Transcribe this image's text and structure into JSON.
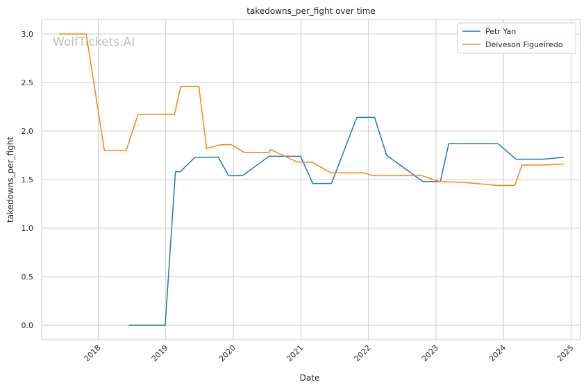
{
  "chart_data": {
    "type": "line",
    "title": "takedowns_per_fight over time",
    "xlabel": "Date",
    "ylabel": "takedowns_per_fight",
    "watermark": "WolfTickets.AI",
    "xlim": [
      "2017-03-01",
      "2025-02-20"
    ],
    "ylim": [
      -0.15,
      3.15
    ],
    "x_ticks": [
      "2018",
      "2019",
      "2020",
      "2021",
      "2022",
      "2023",
      "2024",
      "2025"
    ],
    "y_ticks": [
      "0.0",
      "0.5",
      "1.0",
      "1.5",
      "2.0",
      "2.5",
      "3.0"
    ],
    "grid": true,
    "legend_position": "top-right",
    "series": [
      {
        "name": "Petr Yan",
        "color": "#1f77b4",
        "points": [
          [
            "2018-06-15",
            0.0
          ],
          [
            "2018-12-29",
            0.0
          ],
          [
            "2019-02-22",
            1.58
          ],
          [
            "2019-03-20",
            1.58
          ],
          [
            "2019-06-08",
            1.73
          ],
          [
            "2019-10-12",
            1.73
          ],
          [
            "2019-12-07",
            1.54
          ],
          [
            "2020-02-20",
            1.54
          ],
          [
            "2020-07-12",
            1.74
          ],
          [
            "2020-12-30",
            1.74
          ],
          [
            "2021-03-06",
            1.46
          ],
          [
            "2021-06-15",
            1.46
          ],
          [
            "2021-10-30",
            2.14
          ],
          [
            "2022-02-03",
            2.14
          ],
          [
            "2022-04-09",
            1.75
          ],
          [
            "2022-10-22",
            1.48
          ],
          [
            "2023-01-25",
            1.48
          ],
          [
            "2023-03-11",
            1.87
          ],
          [
            "2023-12-02",
            1.87
          ],
          [
            "2024-03-09",
            1.71
          ],
          [
            "2024-08-03",
            1.71
          ],
          [
            "2024-11-23",
            1.73
          ]
        ]
      },
      {
        "name": "Deiveson Figueiredo",
        "color": "#ff7f0e",
        "points": [
          [
            "2017-06-03",
            3.0
          ],
          [
            "2017-07-29",
            3.0
          ],
          [
            "2017-10-28",
            3.0
          ],
          [
            "2018-02-03",
            1.8
          ],
          [
            "2018-06-01",
            1.8
          ],
          [
            "2018-08-04",
            2.17
          ],
          [
            "2019-02-17",
            2.17
          ],
          [
            "2019-03-23",
            2.46
          ],
          [
            "2019-06-29",
            2.46
          ],
          [
            "2019-08-10",
            1.82
          ],
          [
            "2019-10-26",
            1.86
          ],
          [
            "2019-12-21",
            1.86
          ],
          [
            "2020-02-29",
            1.78
          ],
          [
            "2020-07-12",
            1.78
          ],
          [
            "2020-07-19",
            1.81
          ],
          [
            "2020-11-21",
            1.7
          ],
          [
            "2020-12-12",
            1.68
          ],
          [
            "2021-03-01",
            1.68
          ],
          [
            "2021-06-12",
            1.57
          ],
          [
            "2021-12-11",
            1.57
          ],
          [
            "2022-01-22",
            1.54
          ],
          [
            "2022-10-18",
            1.54
          ],
          [
            "2023-01-21",
            1.48
          ],
          [
            "2023-06-10",
            1.47
          ],
          [
            "2023-11-25",
            1.44
          ],
          [
            "2024-03-02",
            1.44
          ],
          [
            "2024-04-10",
            1.65
          ],
          [
            "2024-08-03",
            1.65
          ],
          [
            "2024-11-23",
            1.66
          ]
        ]
      }
    ]
  }
}
